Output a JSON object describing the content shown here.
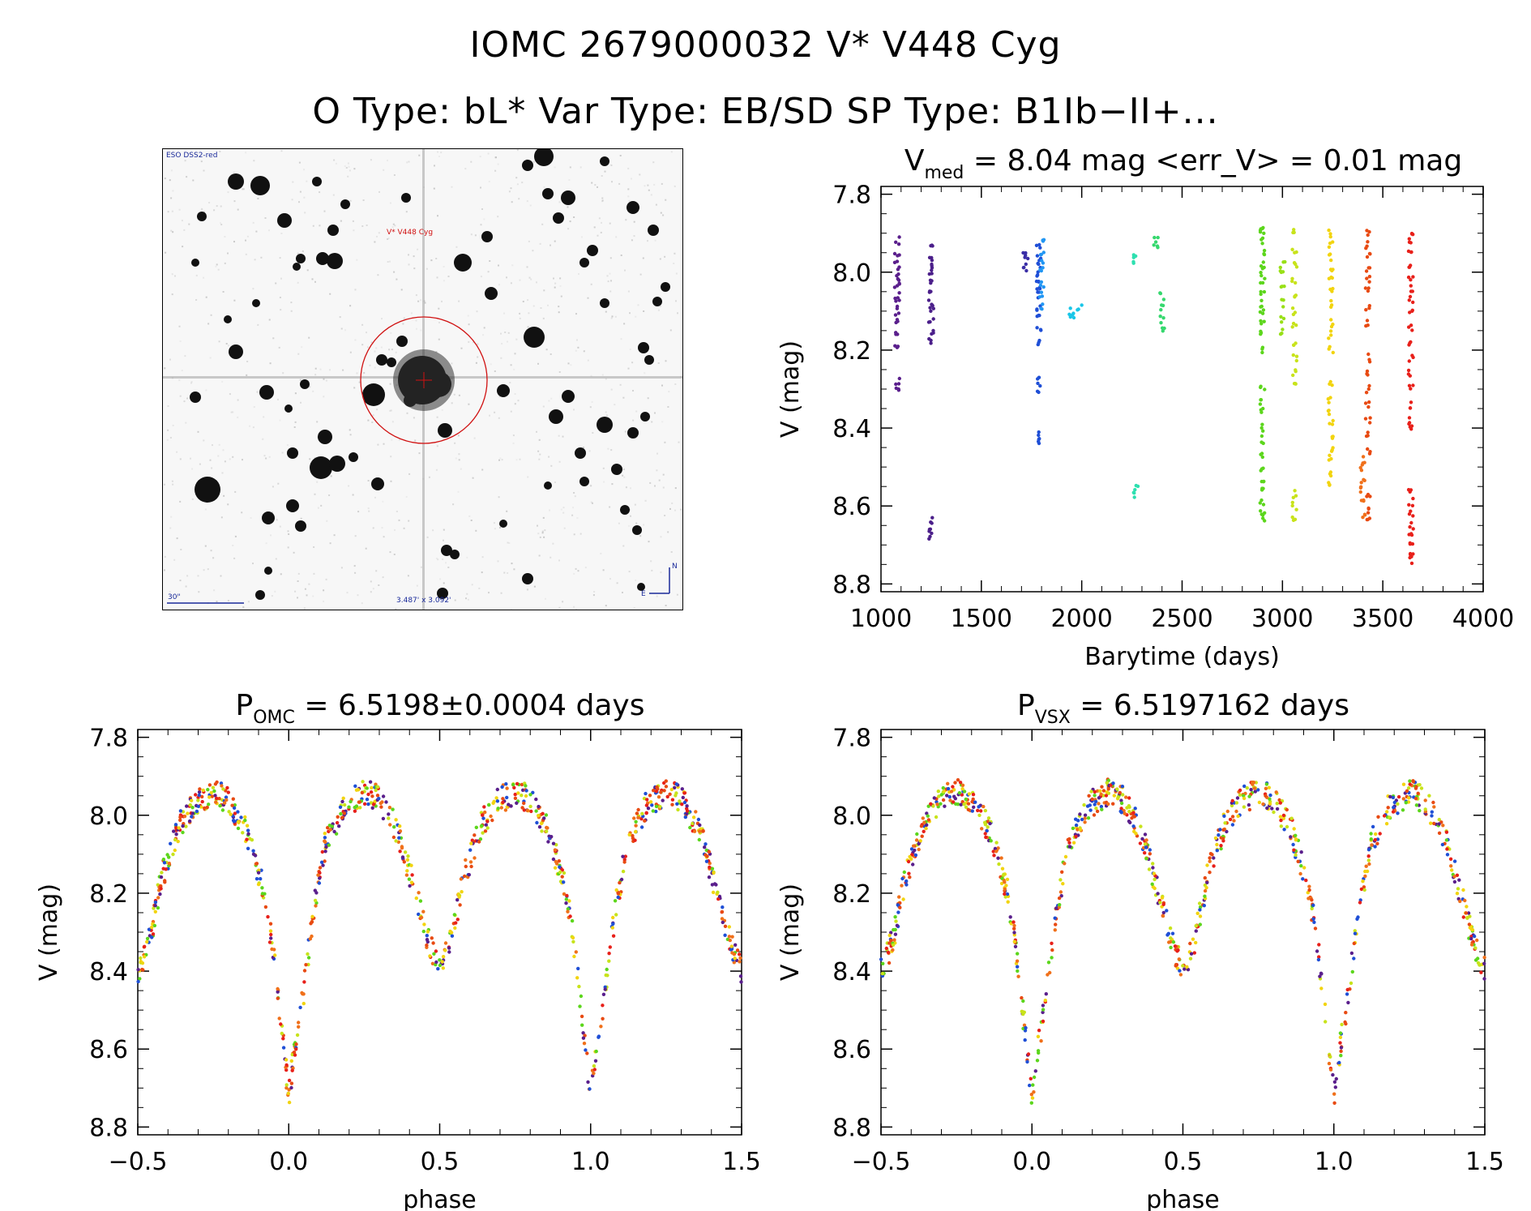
{
  "header": {
    "title": "IOMC 2679000032    V* V448 Cyg",
    "subtitle": "O Type: bL*   Var Type: EB/SD   SP Type: B1Ib−II+..."
  },
  "finder_chart": {
    "survey_label": "ESO DSS2-red",
    "target_label": "V* V448 Cyg",
    "scale_label": "30\"",
    "fov_label": "3.487' x 3.092'",
    "north_label": "N",
    "east_label": "E",
    "circle_color": "#d01010"
  },
  "chart_data": [
    {
      "id": "lightcurve",
      "type": "scatter",
      "title": "V",
      "title_sub": "med",
      "title_rest": " = 8.04 mag <err_V> = 0.01 mag",
      "xlabel": "Barytime (days)",
      "ylabel": "V (mag)",
      "xlim": [
        1000,
        4000
      ],
      "ylim": [
        8.82,
        7.78
      ],
      "xticks": [
        1000,
        1500,
        2000,
        2500,
        3000,
        3500,
        4000
      ],
      "yticks": [
        7.8,
        8.0,
        8.2,
        8.4,
        8.6,
        8.8
      ],
      "color_scale": "rainbow by time (purple → blue → cyan → green → yellow → orange → red)",
      "epochs": [
        {
          "x": 1080,
          "color": "#5a1f8c",
          "values": [
            7.92,
            7.95,
            7.98,
            8.0,
            8.02,
            8.04,
            8.06,
            8.08,
            8.1,
            8.12,
            8.15,
            8.19,
            8.28,
            8.3
          ]
        },
        {
          "x": 1250,
          "color": "#4b1f8a",
          "values": [
            7.94,
            7.96,
            7.98,
            8.0,
            8.02,
            8.05,
            8.08,
            8.1,
            8.13,
            8.16,
            8.18,
            8.64,
            8.66,
            8.68
          ]
        },
        {
          "x": 1720,
          "color": "#3a2ea6",
          "values": [
            7.95,
            7.97,
            7.99
          ]
        },
        {
          "x": 1785,
          "color": "#1f4fd6",
          "values": [
            7.93,
            7.96,
            7.98,
            8.0,
            8.02,
            8.04,
            8.06,
            8.09,
            8.12,
            8.15,
            8.18,
            8.28,
            8.3,
            8.42,
            8.43
          ]
        },
        {
          "x": 1800,
          "color": "#2196f3",
          "values": [
            7.92,
            7.95,
            7.98,
            8.0,
            8.03,
            8.06,
            8.09
          ]
        },
        {
          "x": 1950,
          "color": "#19c6e8",
          "values": [
            8.1,
            8.11
          ]
        },
        {
          "x": 1990,
          "color": "#19c6e8",
          "values": [
            8.09
          ]
        },
        {
          "x": 2270,
          "color": "#2ee0b0",
          "values": [
            7.95,
            7.97,
            8.55,
            8.57
          ]
        },
        {
          "x": 2370,
          "color": "#36d86e",
          "values": [
            7.92,
            7.94
          ]
        },
        {
          "x": 2400,
          "color": "#36d86e",
          "values": [
            8.06,
            8.09,
            8.12,
            8.15
          ]
        },
        {
          "x": 2900,
          "color": "#5cd61c",
          "values": [
            7.88,
            7.9,
            7.92,
            7.95,
            7.98,
            8.0,
            8.02,
            8.05,
            8.08,
            8.1,
            8.13,
            8.15,
            8.2,
            8.3,
            8.33,
            8.36,
            8.4,
            8.43,
            8.47,
            8.5,
            8.53,
            8.56,
            8.59,
            8.62,
            8.63
          ]
        },
        {
          "x": 3000,
          "color": "#98e017",
          "values": [
            7.98,
            8.0,
            8.03,
            8.08,
            8.12,
            8.15
          ]
        },
        {
          "x": 3060,
          "color": "#c8e31b",
          "values": [
            7.9,
            7.94,
            7.98,
            8.02,
            8.06,
            8.1,
            8.14,
            8.18,
            8.22,
            8.26,
            8.29,
            8.57,
            8.6,
            8.63
          ]
        },
        {
          "x": 3240,
          "color": "#f2d40f",
          "values": [
            7.9,
            7.93,
            7.96,
            7.99,
            8.02,
            8.05,
            8.08,
            8.13,
            8.16,
            8.2,
            8.28,
            8.33,
            8.36,
            8.39,
            8.42,
            8.45,
            8.48,
            8.52,
            8.54
          ]
        },
        {
          "x": 3400,
          "color": "#f0701a",
          "values": [
            8.48,
            8.5,
            8.53,
            8.56,
            8.59,
            8.62
          ]
        },
        {
          "x": 3425,
          "color": "#e84a12",
          "values": [
            7.9,
            7.93,
            7.96,
            7.99,
            8.02,
            8.05,
            8.09,
            8.13,
            8.22,
            8.26,
            8.3,
            8.34,
            8.38,
            8.42,
            8.46,
            8.58,
            8.61,
            8.63
          ]
        },
        {
          "x": 3640,
          "color": "#e8201a",
          "values": [
            7.9,
            7.92,
            7.95,
            7.98,
            8.01,
            8.04,
            8.07,
            8.1,
            8.14,
            8.18,
            8.22,
            8.26,
            8.3,
            8.34,
            8.38,
            8.4,
            8.56,
            8.59,
            8.62,
            8.65,
            8.68,
            8.7,
            8.72,
            8.74
          ]
        }
      ]
    },
    {
      "id": "phase-omc",
      "type": "scatter",
      "title": "P",
      "title_sub": "OMC",
      "title_rest": " = 6.5198±0.0004 days",
      "xlabel": "phase",
      "ylabel": "V (mag)",
      "xlim": [
        -0.5,
        1.5
      ],
      "ylim": [
        8.82,
        7.78
      ],
      "xticks": [
        -0.5,
        0.0,
        0.5,
        1.0,
        1.5
      ],
      "yticks": [
        7.8,
        8.0,
        8.2,
        8.4,
        8.6,
        8.8
      ],
      "curve_phase": [
        0.0,
        0.02,
        0.05,
        0.08,
        0.12,
        0.18,
        0.25,
        0.3,
        0.36,
        0.42,
        0.46,
        0.5,
        0.54,
        0.58,
        0.64,
        0.7,
        0.75,
        0.8,
        0.86,
        0.92,
        0.95,
        0.98,
        1.0
      ],
      "curve_mag": [
        8.72,
        8.6,
        8.45,
        8.25,
        8.08,
        7.98,
        7.94,
        7.96,
        8.04,
        8.2,
        8.32,
        8.4,
        8.32,
        8.16,
        8.02,
        7.96,
        7.94,
        7.96,
        8.04,
        8.2,
        8.36,
        8.58,
        8.72
      ],
      "colors": [
        "#e8201a",
        "#e84a12",
        "#f2d40f",
        "#c8e31b",
        "#5cd61c",
        "#1f4fd6",
        "#5a1f8c",
        "#f0701a"
      ]
    },
    {
      "id": "phase-vsx",
      "type": "scatter",
      "title": "P",
      "title_sub": "VSX",
      "title_rest": " = 6.5197162 days",
      "xlabel": "phase",
      "ylabel": "V (mag)",
      "xlim": [
        -0.5,
        1.5
      ],
      "ylim": [
        8.82,
        7.78
      ],
      "xticks": [
        -0.5,
        0.0,
        0.5,
        1.0,
        1.5
      ],
      "yticks": [
        7.8,
        8.0,
        8.2,
        8.4,
        8.6,
        8.8
      ],
      "curve_phase": [
        0.0,
        0.02,
        0.05,
        0.08,
        0.12,
        0.18,
        0.25,
        0.3,
        0.36,
        0.42,
        0.46,
        0.5,
        0.54,
        0.58,
        0.64,
        0.7,
        0.75,
        0.8,
        0.86,
        0.92,
        0.95,
        0.98,
        1.0
      ],
      "curve_mag": [
        8.72,
        8.6,
        8.45,
        8.25,
        8.08,
        7.98,
        7.94,
        7.96,
        8.04,
        8.2,
        8.32,
        8.4,
        8.32,
        8.16,
        8.02,
        7.96,
        7.94,
        7.96,
        8.04,
        8.2,
        8.36,
        8.58,
        8.72
      ],
      "colors": [
        "#e8201a",
        "#e84a12",
        "#f2d40f",
        "#c8e31b",
        "#5cd61c",
        "#1f4fd6",
        "#5a1f8c",
        "#f0701a"
      ]
    }
  ]
}
